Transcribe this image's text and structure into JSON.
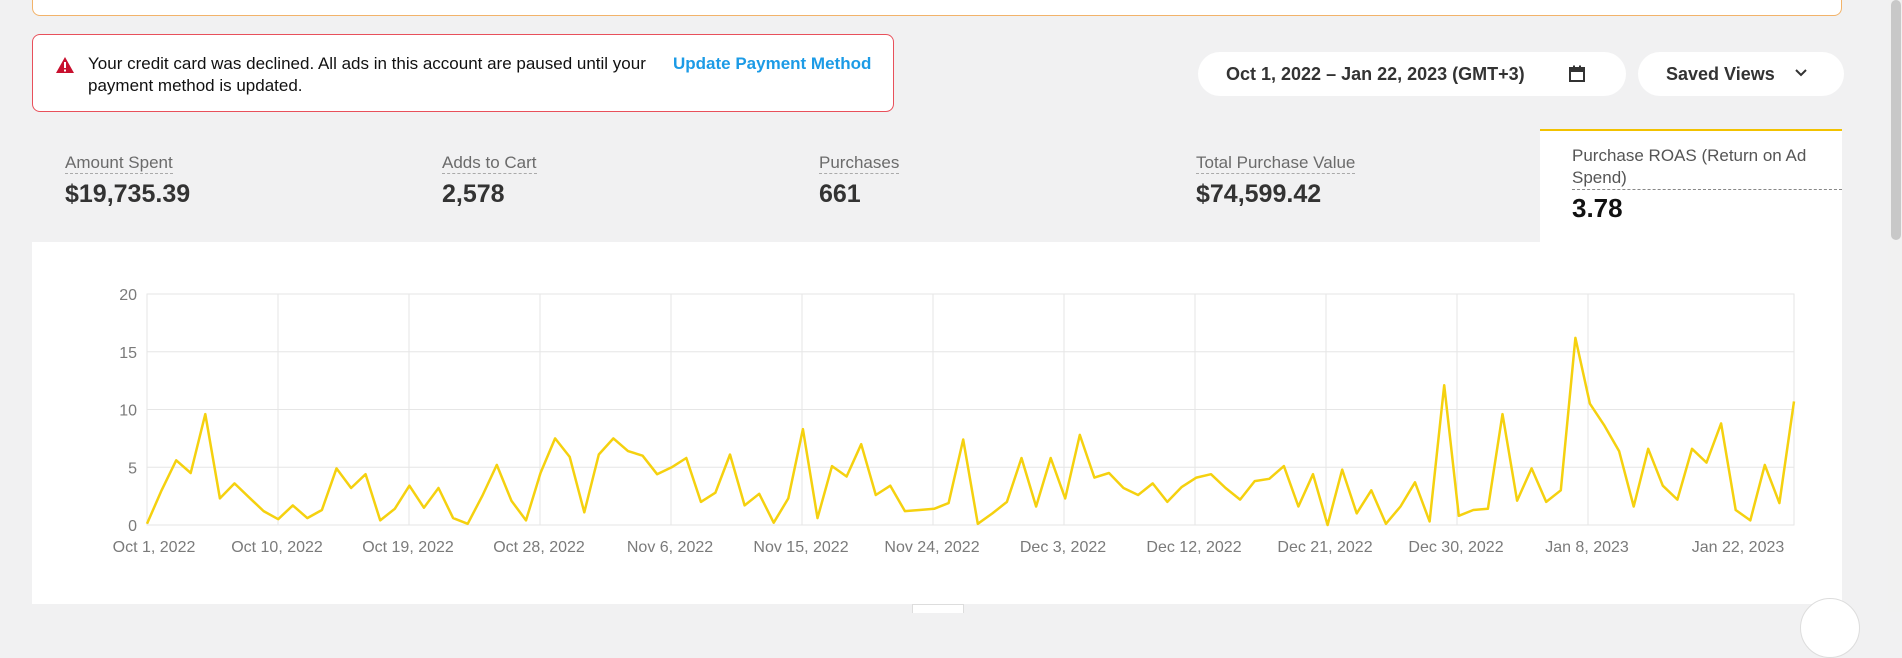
{
  "alert": {
    "message": "Your credit card was declined. All ads in this account are paused until your payment method is updated.",
    "link_label": "Update Payment Method",
    "icon": "warning-icon"
  },
  "toolbar": {
    "date_range": "Oct 1, 2022 – Jan 22, 2023 (GMT+3)",
    "date_icon": "calendar-icon",
    "saved_views_label": "Saved Views",
    "saved_views_icon": "chevron-down-icon"
  },
  "metrics": [
    {
      "label": "Amount Spent",
      "value": "$19,735.39"
    },
    {
      "label": "Adds to Cart",
      "value": "2,578"
    },
    {
      "label": "Purchases",
      "value": "661"
    },
    {
      "label": "Total Purchase Value",
      "value": "$74,599.42"
    }
  ],
  "active_metric": {
    "label": "Purchase ROAS (Return on Ad Spend)",
    "value": "3.78",
    "accent": "#f2c200"
  },
  "chart_data": {
    "type": "line",
    "title": "",
    "xlabel": "",
    "ylabel": "",
    "ylim": [
      0,
      20
    ],
    "yticks": [
      "20",
      "15",
      "10",
      "5",
      "0"
    ],
    "xticks": [
      "Oct 1, 2022",
      "Oct 10, 2022",
      "Oct 19, 2022",
      "Oct 28, 2022",
      "Nov 6, 2022",
      "Nov 15, 2022",
      "Nov 24, 2022",
      "Dec 3, 2022",
      "Dec 12, 2022",
      "Dec 21, 2022",
      "Dec 30, 2022",
      "Jan 8, 2023",
      "Jan 22, 2023"
    ],
    "grid": true,
    "line_color": "#f5d10f",
    "series": [
      {
        "values": [
          0.1,
          3.0,
          5.6,
          4.5,
          9.6,
          2.3,
          3.6,
          2.4,
          1.2,
          0.5,
          1.7,
          0.6,
          1.3,
          4.9,
          3.2,
          4.4,
          0.4,
          1.4,
          3.4,
          1.5,
          3.2,
          0.6,
          0.1,
          2.5,
          5.2,
          2.1,
          0.4,
          4.5,
          7.5,
          5.9,
          1.1,
          6.1,
          7.5,
          6.4,
          6.0,
          4.4,
          5.0,
          5.8,
          2.0,
          2.8,
          6.1,
          1.7,
          2.7,
          0.2,
          2.3,
          8.3,
          0.6,
          5.1,
          4.2,
          7.0,
          2.6,
          3.4,
          1.2,
          1.3,
          1.4,
          1.9,
          7.4,
          0.1,
          1.0,
          2.0,
          5.8,
          1.6,
          5.8,
          2.3,
          7.8,
          4.1,
          4.5,
          3.2,
          2.6,
          3.6,
          2.0,
          3.3,
          4.1,
          4.4,
          3.2,
          2.2,
          3.8,
          4.0,
          5.1,
          1.6,
          4.4,
          0.0,
          4.8,
          1.0,
          3.0,
          0.1,
          1.6,
          3.7,
          0.3,
          12.1,
          0.8,
          1.3,
          1.4,
          9.6,
          2.1,
          4.9,
          2.0,
          3.0,
          16.2,
          10.5,
          8.6,
          6.4,
          1.6,
          6.6,
          3.4,
          2.2,
          6.6,
          5.4,
          8.8,
          1.3,
          0.4,
          5.2,
          1.9,
          10.7
        ]
      }
    ]
  }
}
